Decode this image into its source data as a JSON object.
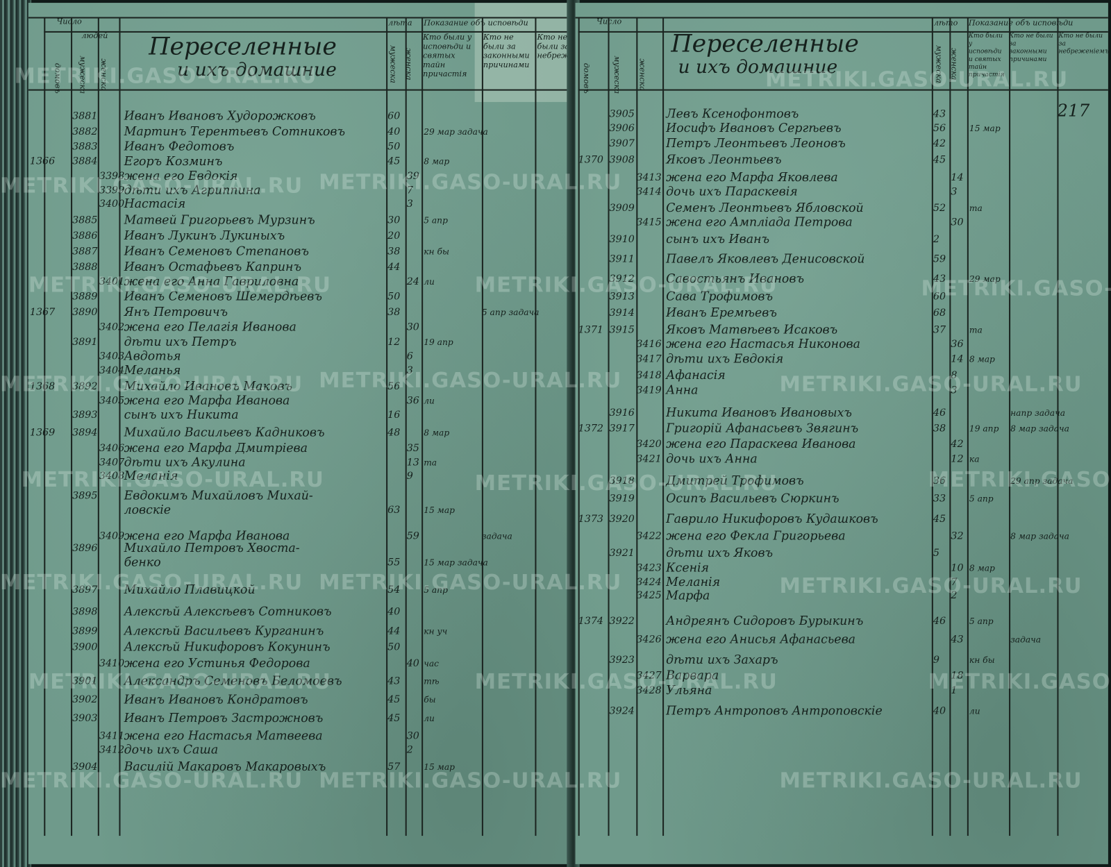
{
  "watermark": "METRIKI.GASO-URAL.RU",
  "colors": {
    "paper": "#6f9a8b",
    "ink": "#15201c"
  },
  "left_page": {
    "title": "Переселенные",
    "subtitle": "и ихъ домашние",
    "headers": {
      "count": "Число",
      "houses": "домовъ",
      "people": "людей",
      "male": "мужеска",
      "female": "женска",
      "years": "лѣта",
      "years_male": "мужеска",
      "years_female": "женска",
      "testimony": "Показание объ исповѣди",
      "col_a": "Кто были у исповѣди и святых тайн причастія",
      "col_b": "Кто не были за законными причинами",
      "col_c": "Кто не были за небреженіемъ"
    },
    "rows": [
      {
        "house": "",
        "m": "3881",
        "f": "",
        "name": "Иванъ Ивановъ Худорожковъ",
        "am": "60",
        "af": "",
        "note": "",
        "note2": ""
      },
      {
        "house": "",
        "m": "3882",
        "f": "",
        "name": "Мартинъ Терентьевъ Сотниковъ",
        "am": "40",
        "af": "",
        "note": "29 мар задача",
        "note2": ""
      },
      {
        "house": "",
        "m": "3883",
        "f": "",
        "name": "Иванъ Федотовъ",
        "am": "50",
        "af": "",
        "note": "",
        "note2": ""
      },
      {
        "house": "1366",
        "m": "3884",
        "f": "",
        "name": "Егоръ Козминъ",
        "am": "45",
        "af": "",
        "note": "8 мар",
        "note2": ""
      },
      {
        "house": "",
        "m": "",
        "f": "3398",
        "name": "жена его Евдокія",
        "am": "",
        "af": "39",
        "note": "",
        "note2": ""
      },
      {
        "house": "",
        "m": "",
        "f": "3399",
        "name": "дѣти ихъ Агриппина",
        "am": "",
        "af": "7",
        "note": "",
        "note2": ""
      },
      {
        "house": "",
        "m": "",
        "f": "3400",
        "name": "Настасія",
        "am": "",
        "af": "3",
        "note": "",
        "note2": ""
      },
      {
        "house": "",
        "m": "3885",
        "f": "",
        "name": "Матвей Григорьевъ Мурзинъ",
        "am": "30",
        "af": "",
        "note": "5 апр",
        "note2": ""
      },
      {
        "house": "",
        "m": "3886",
        "f": "",
        "name": "Иванъ Лукинъ Лукиныхъ",
        "am": "20",
        "af": "",
        "note": "",
        "note2": ""
      },
      {
        "house": "",
        "m": "3887",
        "f": "",
        "name": "Иванъ Семеновъ Степановъ",
        "am": "38",
        "af": "",
        "note": "кн бы",
        "note2": ""
      },
      {
        "house": "",
        "m": "3888",
        "f": "",
        "name": "Иванъ Остафьевъ Капринъ",
        "am": "44",
        "af": "",
        "note": "",
        "note2": ""
      },
      {
        "house": "",
        "m": "",
        "f": "3401",
        "name": "жена его Анна Гавриловна",
        "am": "",
        "af": "24",
        "note": "ли",
        "note2": ""
      },
      {
        "house": "",
        "m": "3889",
        "f": "",
        "name": "Иванъ Семеновъ Шемердѣевъ",
        "am": "50",
        "af": "",
        "note": "",
        "note2": ""
      },
      {
        "house": "1367",
        "m": "3890",
        "f": "",
        "name": "Янъ Петровичъ",
        "am": "38",
        "af": "",
        "note": "",
        "note2": "5 апр задача"
      },
      {
        "house": "",
        "m": "",
        "f": "3402",
        "name": "жена его Пелагія Иванова",
        "am": "",
        "af": "30",
        "note": "",
        "note2": ""
      },
      {
        "house": "",
        "m": "3891",
        "f": "",
        "name": "дѣти ихъ Петръ",
        "am": "12",
        "af": "",
        "note": "19 апр",
        "note2": ""
      },
      {
        "house": "",
        "m": "",
        "f": "3403",
        "name": "Авдотья",
        "am": "",
        "af": "6",
        "note": "",
        "note2": ""
      },
      {
        "house": "",
        "m": "",
        "f": "3404",
        "name": "Меланья",
        "am": "",
        "af": "3",
        "note": "",
        "note2": ""
      },
      {
        "house": "1368",
        "m": "3892",
        "f": "",
        "name": "Михайло Ивановъ Маковъ",
        "am": "56",
        "af": "",
        "note": "",
        "note2": ""
      },
      {
        "house": "",
        "m": "",
        "f": "3405",
        "name": "жена его Марфа Иванова",
        "am": "",
        "af": "36",
        "note": "ли",
        "note2": ""
      },
      {
        "house": "",
        "m": "3893",
        "f": "",
        "name": "сынъ ихъ Никита",
        "am": "16",
        "af": "",
        "note": "",
        "note2": ""
      },
      {
        "house": "1369",
        "m": "3894",
        "f": "",
        "name": "Михайло Васильевъ Кадниковъ",
        "am": "48",
        "af": "",
        "note": "8 мар",
        "note2": ""
      },
      {
        "house": "",
        "m": "",
        "f": "3406",
        "name": "жена его Марфа Дмитріева",
        "am": "",
        "af": "35",
        "note": "",
        "note2": ""
      },
      {
        "house": "",
        "m": "",
        "f": "3407",
        "name": "дѣти ихъ Акулина",
        "am": "",
        "af": "13",
        "note": "та",
        "note2": ""
      },
      {
        "house": "",
        "m": "",
        "f": "3408",
        "name": "Меланія",
        "am": "",
        "af": "9",
        "note": "",
        "note2": ""
      },
      {
        "house": "",
        "m": "3895",
        "f": "",
        "name": "Евдокимъ Михайловъ Михай-",
        "am": "",
        "af": "",
        "note": "",
        "note2": ""
      },
      {
        "house": "",
        "m": "",
        "f": "",
        "name": "ловскіе",
        "am": "63",
        "af": "",
        "note": "15 мар",
        "note2": ""
      },
      {
        "house": "",
        "m": "",
        "f": "3409",
        "name": "жена его Марфа Иванова",
        "am": "",
        "af": "59",
        "note": "",
        "note2": "задача"
      },
      {
        "house": "",
        "m": "3896",
        "f": "",
        "name": "Михайло Петровъ Хвоста-",
        "am": "",
        "af": "",
        "note": "",
        "note2": ""
      },
      {
        "house": "",
        "m": "",
        "f": "",
        "name": "бенко",
        "am": "55",
        "af": "",
        "note": "15 мар задача",
        "note2": ""
      },
      {
        "house": "",
        "m": "3897",
        "f": "",
        "name": "Михайло Плавицкой",
        "am": "54",
        "af": "",
        "note": "5 апр",
        "note2": ""
      },
      {
        "house": "",
        "m": "3898",
        "f": "",
        "name": "Алексѣй Алексѣевъ Сотниковъ",
        "am": "40",
        "af": "",
        "note": "",
        "note2": ""
      },
      {
        "house": "",
        "m": "3899",
        "f": "",
        "name": "Алексѣй Васильевъ Курганинъ",
        "am": "44",
        "af": "",
        "note": "кн уч",
        "note2": ""
      },
      {
        "house": "",
        "m": "3900",
        "f": "",
        "name": "Алексѣй Никифоровъ Кокунинъ",
        "am": "50",
        "af": "",
        "note": "",
        "note2": ""
      },
      {
        "house": "",
        "m": "",
        "f": "3410",
        "name": "жена его Устинья Федорова",
        "am": "",
        "af": "40",
        "note": "час",
        "note2": ""
      },
      {
        "house": "",
        "m": "3901",
        "f": "",
        "name": "Александръ Семеновъ Беломоевъ",
        "am": "43",
        "af": "",
        "note": "тѣ",
        "note2": ""
      },
      {
        "house": "",
        "m": "3902",
        "f": "",
        "name": "Иванъ Ивановъ Кондратовъ",
        "am": "45",
        "af": "",
        "note": "бы",
        "note2": ""
      },
      {
        "house": "",
        "m": "3903",
        "f": "",
        "name": "Иванъ Петровъ Застрожновъ",
        "am": "45",
        "af": "",
        "note": "ли",
        "note2": ""
      },
      {
        "house": "",
        "m": "",
        "f": "3411",
        "name": "жена его Настасья Матвеева",
        "am": "",
        "af": "30",
        "note": "",
        "note2": ""
      },
      {
        "house": "",
        "m": "",
        "f": "3412",
        "name": "дочь ихъ Саша",
        "am": "",
        "af": "2",
        "note": "",
        "note2": ""
      },
      {
        "house": "",
        "m": "3904",
        "f": "",
        "name": "Василій Макаровъ Макаровыхъ",
        "am": "57",
        "af": "",
        "note": "15 мар",
        "note2": ""
      }
    ]
  },
  "right_page": {
    "title": "Переселенные",
    "subtitle": "и ихъ домашние",
    "folio": "217",
    "headers": {
      "count": "Число",
      "houses": "домовъ",
      "male": "мужеска",
      "female": "женска",
      "years": "лѣто",
      "years_male": "мужеска",
      "years_female": "женска",
      "testimony": "Показание объ исповѣди",
      "col_a": "Кто были у исповѣди и святых тайн причастія",
      "col_b": "Кто не были за законными причинами",
      "col_c": "Кто не были за небреженіемъ"
    },
    "rows": [
      {
        "house": "",
        "m": "3905",
        "f": "",
        "name": "Левъ Ксенофонтовъ",
        "am": "43",
        "af": "",
        "note": "",
        "note2": ""
      },
      {
        "house": "",
        "m": "3906",
        "f": "",
        "name": "Иосифъ Ивановъ Сергѣевъ",
        "am": "56",
        "af": "",
        "note": "15 мар",
        "note2": ""
      },
      {
        "house": "",
        "m": "3907",
        "f": "",
        "name": "Петръ Леонтьевъ Леоновъ",
        "am": "42",
        "af": "",
        "note": "",
        "note2": ""
      },
      {
        "house": "1370",
        "m": "3908",
        "f": "",
        "name": "Яковъ Леонтьевъ",
        "am": "45",
        "af": "",
        "note": "",
        "note2": ""
      },
      {
        "house": "",
        "m": "",
        "f": "3413",
        "name": "жена его Марфа Яковлева",
        "am": "",
        "af": "14",
        "note": "",
        "note2": ""
      },
      {
        "house": "",
        "m": "",
        "f": "3414",
        "name": "дочь ихъ Параскевія",
        "am": "",
        "af": "3",
        "note": "",
        "note2": ""
      },
      {
        "house": "",
        "m": "3909",
        "f": "",
        "name": "Семенъ Леонтьевъ Ябловской",
        "am": "52",
        "af": "",
        "note": "та",
        "note2": ""
      },
      {
        "house": "",
        "m": "",
        "f": "3415",
        "name": "жена его Ампліада Петрова",
        "am": "",
        "af": "30",
        "note": "",
        "note2": ""
      },
      {
        "house": "",
        "m": "3910",
        "f": "",
        "name": "сынъ ихъ Иванъ",
        "am": "2",
        "af": "",
        "note": "",
        "note2": ""
      },
      {
        "house": "",
        "m": "3911",
        "f": "",
        "name": "Павелъ Яковлевъ Денисовской",
        "am": "59",
        "af": "",
        "note": "",
        "note2": ""
      },
      {
        "house": "",
        "m": "3912",
        "f": "",
        "name": "Савостьянъ Ивановъ",
        "am": "43",
        "af": "",
        "note": "29 мар",
        "note2": ""
      },
      {
        "house": "",
        "m": "3913",
        "f": "",
        "name": "Сава Трофимовъ",
        "am": "60",
        "af": "",
        "note": "",
        "note2": ""
      },
      {
        "house": "",
        "m": "3914",
        "f": "",
        "name": "Иванъ Еремѣевъ",
        "am": "68",
        "af": "",
        "note": "",
        "note2": ""
      },
      {
        "house": "1371",
        "m": "3915",
        "f": "",
        "name": "Яковъ Матвѣевъ Исаковъ",
        "am": "37",
        "af": "",
        "note": "та",
        "note2": ""
      },
      {
        "house": "",
        "m": "",
        "f": "3416",
        "name": "жена его Настасья Никонова",
        "am": "",
        "af": "36",
        "note": "",
        "note2": ""
      },
      {
        "house": "",
        "m": "",
        "f": "3417",
        "name": "дѣти ихъ Евдокія",
        "am": "",
        "af": "14",
        "note": "8 мар",
        "note2": ""
      },
      {
        "house": "",
        "m": "",
        "f": "3418",
        "name": "Афанасія",
        "am": "",
        "af": "8",
        "note": "",
        "note2": ""
      },
      {
        "house": "",
        "m": "",
        "f": "3419",
        "name": "Анна",
        "am": "",
        "af": "3",
        "note": "",
        "note2": ""
      },
      {
        "house": "",
        "m": "3916",
        "f": "",
        "name": "Никита Ивановъ Ивановыхъ",
        "am": "46",
        "af": "",
        "note": "",
        "note2": "напр задача"
      },
      {
        "house": "1372",
        "m": "3917",
        "f": "",
        "name": "Григорій Афанасьевъ Звягинъ",
        "am": "38",
        "af": "",
        "note": "19 апр",
        "note2": "8 мар задача"
      },
      {
        "house": "",
        "m": "",
        "f": "3420",
        "name": "жена его Параскева Иванова",
        "am": "",
        "af": "42",
        "note": "",
        "note2": ""
      },
      {
        "house": "",
        "m": "",
        "f": "3421",
        "name": "дочь ихъ Анна",
        "am": "",
        "af": "12",
        "note": "ка",
        "note2": ""
      },
      {
        "house": "",
        "m": "3918",
        "f": "",
        "name": "Дмитрей Трофимовъ",
        "am": "36",
        "af": "",
        "note": "",
        "note2": "29 апр задача"
      },
      {
        "house": "",
        "m": "3919",
        "f": "",
        "name": "Осипъ Васильевъ Сюркинъ",
        "am": "33",
        "af": "",
        "note": "5 апр",
        "note2": ""
      },
      {
        "house": "1373",
        "m": "3920",
        "f": "",
        "name": "Гаврило Никифоровъ Кудашковъ",
        "am": "45",
        "af": "",
        "note": "",
        "note2": ""
      },
      {
        "house": "",
        "m": "",
        "f": "3422",
        "name": "жена его Фекла Григорьева",
        "am": "",
        "af": "32",
        "note": "",
        "note2": "8 мар задача"
      },
      {
        "house": "",
        "m": "3921",
        "f": "",
        "name": "дѣти ихъ Яковъ",
        "am": "5",
        "af": "",
        "note": "",
        "note2": ""
      },
      {
        "house": "",
        "m": "",
        "f": "3423",
        "name": "Ксенія",
        "am": "",
        "af": "10",
        "note": "8 мар",
        "note2": ""
      },
      {
        "house": "",
        "m": "",
        "f": "3424",
        "name": "Меланія",
        "am": "",
        "af": "7",
        "note": "",
        "note2": ""
      },
      {
        "house": "",
        "m": "",
        "f": "3425",
        "name": "Марфа",
        "am": "",
        "af": "2",
        "note": "",
        "note2": ""
      },
      {
        "house": "1374",
        "m": "3922",
        "f": "",
        "name": "Андреянъ Сидоровъ Бурыкинъ",
        "am": "46",
        "af": "",
        "note": "5 апр",
        "note2": ""
      },
      {
        "house": "",
        "m": "",
        "f": "3426",
        "name": "жена его Анисья Афанасьева",
        "am": "",
        "af": "43",
        "note": "",
        "note2": "задача"
      },
      {
        "house": "",
        "m": "3923",
        "f": "",
        "name": "дѣти ихъ Захаръ",
        "am": "9",
        "af": "",
        "note": "кн бы",
        "note2": ""
      },
      {
        "house": "",
        "m": "",
        "f": "3427",
        "name": "Варвара",
        "am": "",
        "af": "18",
        "note": "",
        "note2": ""
      },
      {
        "house": "",
        "m": "",
        "f": "3428",
        "name": "Ульяна",
        "am": "",
        "af": "1",
        "note": "",
        "note2": ""
      },
      {
        "house": "",
        "m": "3924",
        "f": "",
        "name": "Петръ Антроповъ Антроповскіе",
        "am": "40",
        "af": "",
        "note": "ли",
        "note2": ""
      }
    ]
  }
}
